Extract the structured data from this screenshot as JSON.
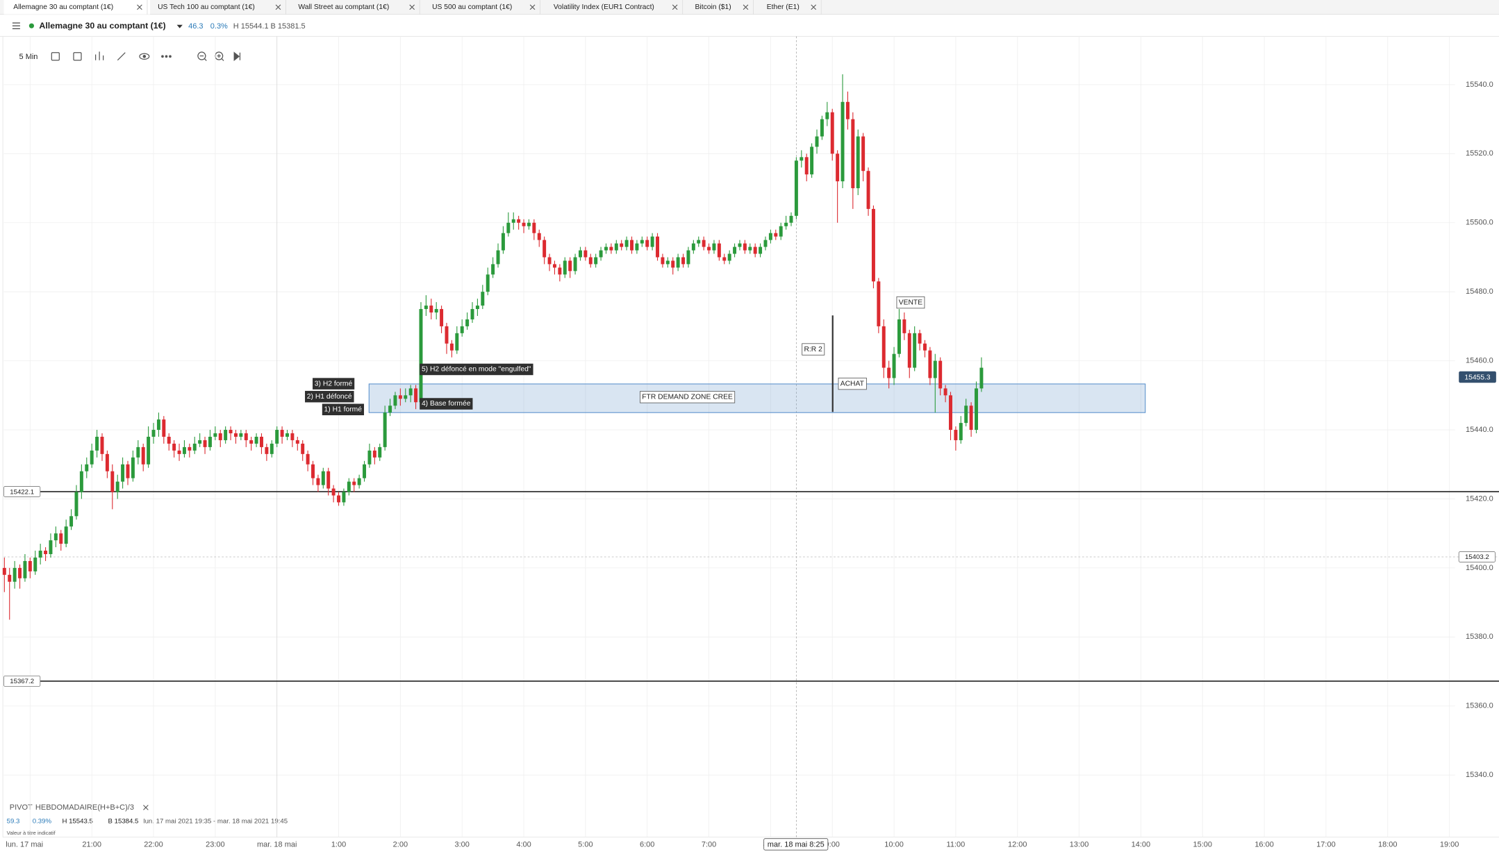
{
  "tabs": [
    "Allemagne 30 au comptant (1€)",
    "US Tech 100 au comptant (1€)",
    "Wall Street au comptant (1€)",
    "US 500 au comptant (1€)",
    "Volatility Index (EUR1 Contract)",
    "Bitcoin ($1)",
    "Ether (E1)"
  ],
  "header": {
    "instrument": "Allemagne 30 au comptant (1€)",
    "change": 46.3,
    "change_pct": "0.3%",
    "high": "H 15544.1",
    "low": "B 15381.5"
  },
  "toolbar": {
    "interval": "5 Min"
  },
  "chart_data": {
    "type": "candlestick",
    "up_color": "#2b9a3c",
    "down_color": "#dc2a30",
    "ohlc": [
      [
        15400,
        15403,
        15393,
        15398
      ],
      [
        15398,
        15400,
        15385,
        15396
      ],
      [
        15396,
        15402,
        15394,
        15400
      ],
      [
        15400,
        15401,
        15394,
        15397
      ],
      [
        15397,
        15404,
        15396,
        15402
      ],
      [
        15402,
        15403,
        15397,
        15399
      ],
      [
        15399,
        15405,
        15398,
        15403
      ],
      [
        15403,
        15407,
        15401,
        15405
      ],
      [
        15405,
        15406,
        15402,
        15404
      ],
      [
        15404,
        15410,
        15403,
        15408
      ],
      [
        15408,
        15412,
        15406,
        15410
      ],
      [
        15410,
        15411,
        15405,
        15407
      ],
      [
        15407,
        15414,
        15406,
        15412
      ],
      [
        15412,
        15417,
        15411,
        15415
      ],
      [
        15415,
        15424,
        15414,
        15422
      ],
      [
        15422,
        15430,
        15420,
        15428
      ],
      [
        15428,
        15432,
        15426,
        15430
      ],
      [
        15430,
        15436,
        15429,
        15434
      ],
      [
        15434,
        15440,
        15432,
        15438
      ],
      [
        15438,
        15439,
        15431,
        15433
      ],
      [
        15433,
        15434,
        15426,
        15428
      ],
      [
        15428,
        15430,
        15417,
        15422
      ],
      [
        15422,
        15427,
        15420,
        15425
      ],
      [
        15425,
        15432,
        15423,
        15430
      ],
      [
        15430,
        15431,
        15424,
        15426
      ],
      [
        15426,
        15434,
        15425,
        15432
      ],
      [
        15432,
        15437,
        15430,
        15435
      ],
      [
        15435,
        15436,
        15428,
        15430
      ],
      [
        15430,
        15441,
        15429,
        15438
      ],
      [
        15438,
        15442,
        15436,
        15440
      ],
      [
        15440,
        15445,
        15438,
        15443
      ],
      [
        15443,
        15444,
        15436,
        15438
      ],
      [
        15438,
        15439,
        15434,
        15436
      ],
      [
        15436,
        15437,
        15432,
        15434
      ],
      [
        15434,
        15436,
        15431,
        15433
      ],
      [
        15433,
        15437,
        15432,
        15435
      ],
      [
        15435,
        15436,
        15432,
        15434
      ],
      [
        15434,
        15438,
        15433,
        15436
      ],
      [
        15436,
        15439,
        15435,
        15437
      ],
      [
        15437,
        15438,
        15433,
        15435
      ],
      [
        15435,
        15440,
        15434,
        15438
      ],
      [
        15438,
        15441,
        15437,
        15439
      ],
      [
        15439,
        15440,
        15435,
        15437
      ],
      [
        15437,
        15441,
        15436,
        15440
      ],
      [
        15440,
        15441,
        15437,
        15439
      ],
      [
        15439,
        15440,
        15436,
        15438
      ],
      [
        15438,
        15440,
        15437,
        15439
      ],
      [
        15439,
        15440,
        15435,
        15437
      ],
      [
        15437,
        15438,
        15434,
        15436
      ],
      [
        15436,
        15439,
        15435,
        15438
      ],
      [
        15438,
        15439,
        15433,
        15435
      ],
      [
        15435,
        15436,
        15431,
        15433
      ],
      [
        15433,
        15437,
        15432,
        15436
      ],
      [
        15436,
        15441,
        15435,
        15440
      ],
      [
        15440,
        15441,
        15436,
        15438
      ],
      [
        15438,
        15440,
        15437,
        15439
      ],
      [
        15439,
        15440,
        15435,
        15437
      ],
      [
        15437,
        15438,
        15434,
        15436
      ],
      [
        15436,
        15437,
        15431,
        15433
      ],
      [
        15433,
        15434,
        15428,
        15430
      ],
      [
        15430,
        15431,
        15424,
        15426
      ],
      [
        15426,
        15427,
        15422,
        15424
      ],
      [
        15424,
        15429,
        15423,
        15428
      ],
      [
        15428,
        15429,
        15421,
        15423
      ],
      [
        15423,
        15424,
        15419,
        15421
      ],
      [
        15421,
        15422,
        15418,
        15419
      ],
      [
        15419,
        15423,
        15418,
        15422
      ],
      [
        15422,
        15426,
        15421,
        15425
      ],
      [
        15425,
        15426,
        15422,
        15424
      ],
      [
        15424,
        15427,
        15423,
        15426
      ],
      [
        15426,
        15431,
        15425,
        15430
      ],
      [
        15430,
        15436,
        15429,
        15434
      ],
      [
        15434,
        15435,
        15430,
        15432
      ],
      [
        15432,
        15436,
        15431,
        15435
      ],
      [
        15435,
        15447,
        15434,
        15445
      ],
      [
        15445,
        15449,
        15444,
        15447
      ],
      [
        15447,
        15451,
        15446,
        15450
      ],
      [
        15450,
        15452,
        15447,
        15449
      ],
      [
        15449,
        15452,
        15448,
        15450
      ],
      [
        15450,
        15453,
        15448,
        15452
      ],
      [
        15452,
        15453,
        15446,
        15448
      ],
      [
        15448,
        15477,
        15447,
        15475
      ],
      [
        15475,
        15479,
        15473,
        15476
      ],
      [
        15476,
        15478,
        15472,
        15474
      ],
      [
        15474,
        15477,
        15472,
        15475
      ],
      [
        15475,
        15476,
        15468,
        15470
      ],
      [
        15470,
        15471,
        15462,
        15465
      ],
      [
        15465,
        15466,
        15461,
        15463
      ],
      [
        15463,
        15470,
        15462,
        15468
      ],
      [
        15468,
        15472,
        15467,
        15470
      ],
      [
        15470,
        15474,
        15469,
        15472
      ],
      [
        15472,
        15477,
        15471,
        15475
      ],
      [
        15475,
        15478,
        15473,
        15476
      ],
      [
        15476,
        15482,
        15475,
        15480
      ],
      [
        15480,
        15487,
        15479,
        15485
      ],
      [
        15485,
        15490,
        15484,
        15488
      ],
      [
        15488,
        15494,
        15487,
        15492
      ],
      [
        15492,
        15499,
        15491,
        15497
      ],
      [
        15497,
        15503,
        15496,
        15500
      ],
      [
        15500,
        15503,
        15498,
        15501
      ],
      [
        15501,
        15502,
        15498,
        15500
      ],
      [
        15500,
        15501,
        15497,
        15499
      ],
      [
        15499,
        15501,
        15498,
        15500
      ],
      [
        15500,
        15501,
        15495,
        15497
      ],
      [
        15497,
        15498,
        15493,
        15495
      ],
      [
        15495,
        15496,
        15488,
        15490
      ],
      [
        15490,
        15491,
        15486,
        15488
      ],
      [
        15488,
        15489,
        15485,
        15487
      ],
      [
        15487,
        15488,
        15483,
        15485
      ],
      [
        15485,
        15490,
        15484,
        15489
      ],
      [
        15489,
        15490,
        15484,
        15486
      ],
      [
        15486,
        15491,
        15485,
        15490
      ],
      [
        15490,
        15493,
        15489,
        15492
      ],
      [
        15492,
        15493,
        15489,
        15490
      ],
      [
        15490,
        15491,
        15487,
        15488
      ],
      [
        15488,
        15491,
        15487,
        15490
      ],
      [
        15490,
        15493,
        15489,
        15492
      ],
      [
        15492,
        15494,
        15491,
        15493
      ],
      [
        15493,
        15494,
        15491,
        15492
      ],
      [
        15492,
        15495,
        15491,
        15494
      ],
      [
        15494,
        15495,
        15492,
        15493
      ],
      [
        15493,
        15496,
        15492,
        15495
      ],
      [
        15495,
        15496,
        15491,
        15492
      ],
      [
        15492,
        15495,
        15491,
        15494
      ],
      [
        15494,
        15496,
        15493,
        15495
      ],
      [
        15495,
        15496,
        15492,
        15493
      ],
      [
        15493,
        15497,
        15492,
        15496
      ],
      [
        15496,
        15497,
        15489,
        15490
      ],
      [
        15490,
        15491,
        15487,
        15488
      ],
      [
        15488,
        15490,
        15487,
        15489
      ],
      [
        15489,
        15490,
        15485,
        15487
      ],
      [
        15487,
        15491,
        15486,
        15490
      ],
      [
        15490,
        15491,
        15487,
        15488
      ],
      [
        15488,
        15493,
        15487,
        15492
      ],
      [
        15492,
        15495,
        15491,
        15494
      ],
      [
        15494,
        15496,
        15493,
        15495
      ],
      [
        15495,
        15496,
        15492,
        15493
      ],
      [
        15493,
        15494,
        15491,
        15492
      ],
      [
        15492,
        15495,
        15491,
        15494
      ],
      [
        15494,
        15495,
        15489,
        15490
      ],
      [
        15490,
        15491,
        15488,
        15489
      ],
      [
        15489,
        15492,
        15488,
        15491
      ],
      [
        15491,
        15494,
        15490,
        15493
      ],
      [
        15493,
        15495,
        15492,
        15494
      ],
      [
        15494,
        15495,
        15491,
        15492
      ],
      [
        15492,
        15494,
        15491,
        15493
      ],
      [
        15493,
        15494,
        15490,
        15491
      ],
      [
        15491,
        15494,
        15490,
        15493
      ],
      [
        15493,
        15496,
        15492,
        15495
      ],
      [
        15495,
        15498,
        15494,
        15497
      ],
      [
        15497,
        15498,
        15495,
        15496
      ],
      [
        15496,
        15500,
        15495,
        15499
      ],
      [
        15499,
        15502,
        15498,
        15500
      ],
      [
        15500,
        15503,
        15499,
        15502
      ],
      [
        15502,
        15519,
        15501,
        15518
      ],
      [
        15518,
        15521,
        15516,
        15519
      ],
      [
        15519,
        15520,
        15512,
        15514
      ],
      [
        15514,
        15523,
        15513,
        15522
      ],
      [
        15522,
        15527,
        15520,
        15525
      ],
      [
        15525,
        15531,
        15524,
        15530
      ],
      [
        15530,
        15535,
        15528,
        15532
      ],
      [
        15532,
        15533,
        15518,
        15520
      ],
      [
        15520,
        15521,
        15500,
        15512
      ],
      [
        15512,
        15543,
        15510,
        15535
      ],
      [
        15535,
        15538,
        15527,
        15530
      ],
      [
        15530,
        15532,
        15504,
        15510
      ],
      [
        15510,
        15527,
        15508,
        15525
      ],
      [
        15525,
        15526,
        15512,
        15515
      ],
      [
        15515,
        15516,
        15502,
        15504
      ],
      [
        15504,
        15505,
        15481,
        15483
      ],
      [
        15483,
        15484,
        15468,
        15470
      ],
      [
        15470,
        15472,
        15455,
        15458
      ],
      [
        15458,
        15460,
        15452,
        15455
      ],
      [
        15455,
        15464,
        15453,
        15462
      ],
      [
        15462,
        15475,
        15461,
        15472
      ],
      [
        15472,
        15474,
        15466,
        15468
      ],
      [
        15468,
        15469,
        15455,
        15458
      ],
      [
        15458,
        15470,
        15457,
        15468
      ],
      [
        15468,
        15469,
        15463,
        15465
      ],
      [
        15465,
        15466,
        15461,
        15463
      ],
      [
        15463,
        15464,
        15453,
        15455
      ],
      [
        15455,
        15462,
        15445,
        15460
      ],
      [
        15460,
        15461,
        15450,
        15452
      ],
      [
        15452,
        15453,
        15448,
        15450
      ],
      [
        15450,
        15451,
        15437,
        15440
      ],
      [
        15440,
        15441,
        15434,
        15437
      ],
      [
        15437,
        15444,
        15436,
        15442
      ],
      [
        15442,
        15449,
        15441,
        15447
      ],
      [
        15447,
        15448,
        15438,
        15440
      ],
      [
        15440,
        15454,
        15439,
        15452
      ],
      [
        15452,
        15461,
        15451,
        15458
      ]
    ],
    "xlim": [
      0,
      282
    ],
    "xticks": [
      {
        "value": 5,
        "label": "lun. 17 mai"
      },
      {
        "value": 17,
        "label": "21:00"
      },
      {
        "value": 29,
        "label": "22:00"
      },
      {
        "value": 41,
        "label": "23:00"
      },
      {
        "value": 53,
        "label": "mar. 18 mai"
      },
      {
        "value": 65,
        "label": "1:00"
      },
      {
        "value": 77,
        "label": "2:00"
      },
      {
        "value": 89,
        "label": "3:00"
      },
      {
        "value": 101,
        "label": "4:00"
      },
      {
        "value": 113,
        "label": "5:00"
      },
      {
        "value": 125,
        "label": "6:00"
      },
      {
        "value": 137,
        "label": "7:00"
      },
      {
        "value": 149,
        "label": "8:00"
      },
      {
        "value": 161,
        "label": "9:00"
      },
      {
        "value": 173,
        "label": "10:00"
      },
      {
        "value": 185,
        "label": "11:00"
      },
      {
        "value": 197,
        "label": "12:00"
      },
      {
        "value": 209,
        "label": "13:00"
      },
      {
        "value": 221,
        "label": "14:00"
      },
      {
        "value": 233,
        "label": "15:00"
      },
      {
        "value": 245,
        "label": "16:00"
      },
      {
        "value": 257,
        "label": "17:00"
      },
      {
        "value": 269,
        "label": "18:00"
      },
      {
        "value": 281,
        "label": "19:00"
      }
    ],
    "ylim": [
      15322,
      15554
    ],
    "yticks": [
      {
        "value": 15340,
        "label": "15340.0"
      },
      {
        "value": 15360,
        "label": "15360.0"
      },
      {
        "value": 15380,
        "label": "15380.0"
      },
      {
        "value": 15400,
        "label": "15400.0"
      },
      {
        "value": 15420,
        "label": "15420.0"
      },
      {
        "value": 15440,
        "label": "15440.0"
      },
      {
        "value": 15460,
        "label": "15460.0"
      },
      {
        "value": 15480,
        "label": "15480.0"
      },
      {
        "value": 15500,
        "label": "15500.0"
      },
      {
        "value": 15520,
        "label": "15520.0"
      },
      {
        "value": 15540,
        "label": "15540.0"
      }
    ],
    "grid": true,
    "levels": [
      {
        "value": 15422.1,
        "style": "solid"
      },
      {
        "value": 15367.2,
        "style": "solid"
      },
      {
        "value": 15403.2,
        "style": "dashed"
      }
    ],
    "last_price": 15455.3,
    "zone": {
      "label": "FTR DEMAND ZONE CREE",
      "top": 15453.3,
      "bottom": 15445
    },
    "annotations": [
      "3) H2 formé",
      "2) H1 défoncé",
      "1) H1 formé",
      "5) H2 défoncé en mode \"engulfed\"",
      "4) Base formée",
      "R:R 2",
      "ACHAT",
      "VENTE"
    ],
    "crosshair_label": "mar. 18 mai 8:25"
  },
  "indicator": {
    "name": "PIVOT",
    "period": "HEBDOMADAIRE",
    "formula": "(H+B+C)/3",
    "change": 59.3,
    "change_pct": "0.39%",
    "high": "H 15543.5",
    "low": "B 15384.5",
    "range": "lun. 17 mai 2021 19:35 - mar. 18 mai 2021 19:45",
    "note": "Valeur à titre indicatif"
  }
}
